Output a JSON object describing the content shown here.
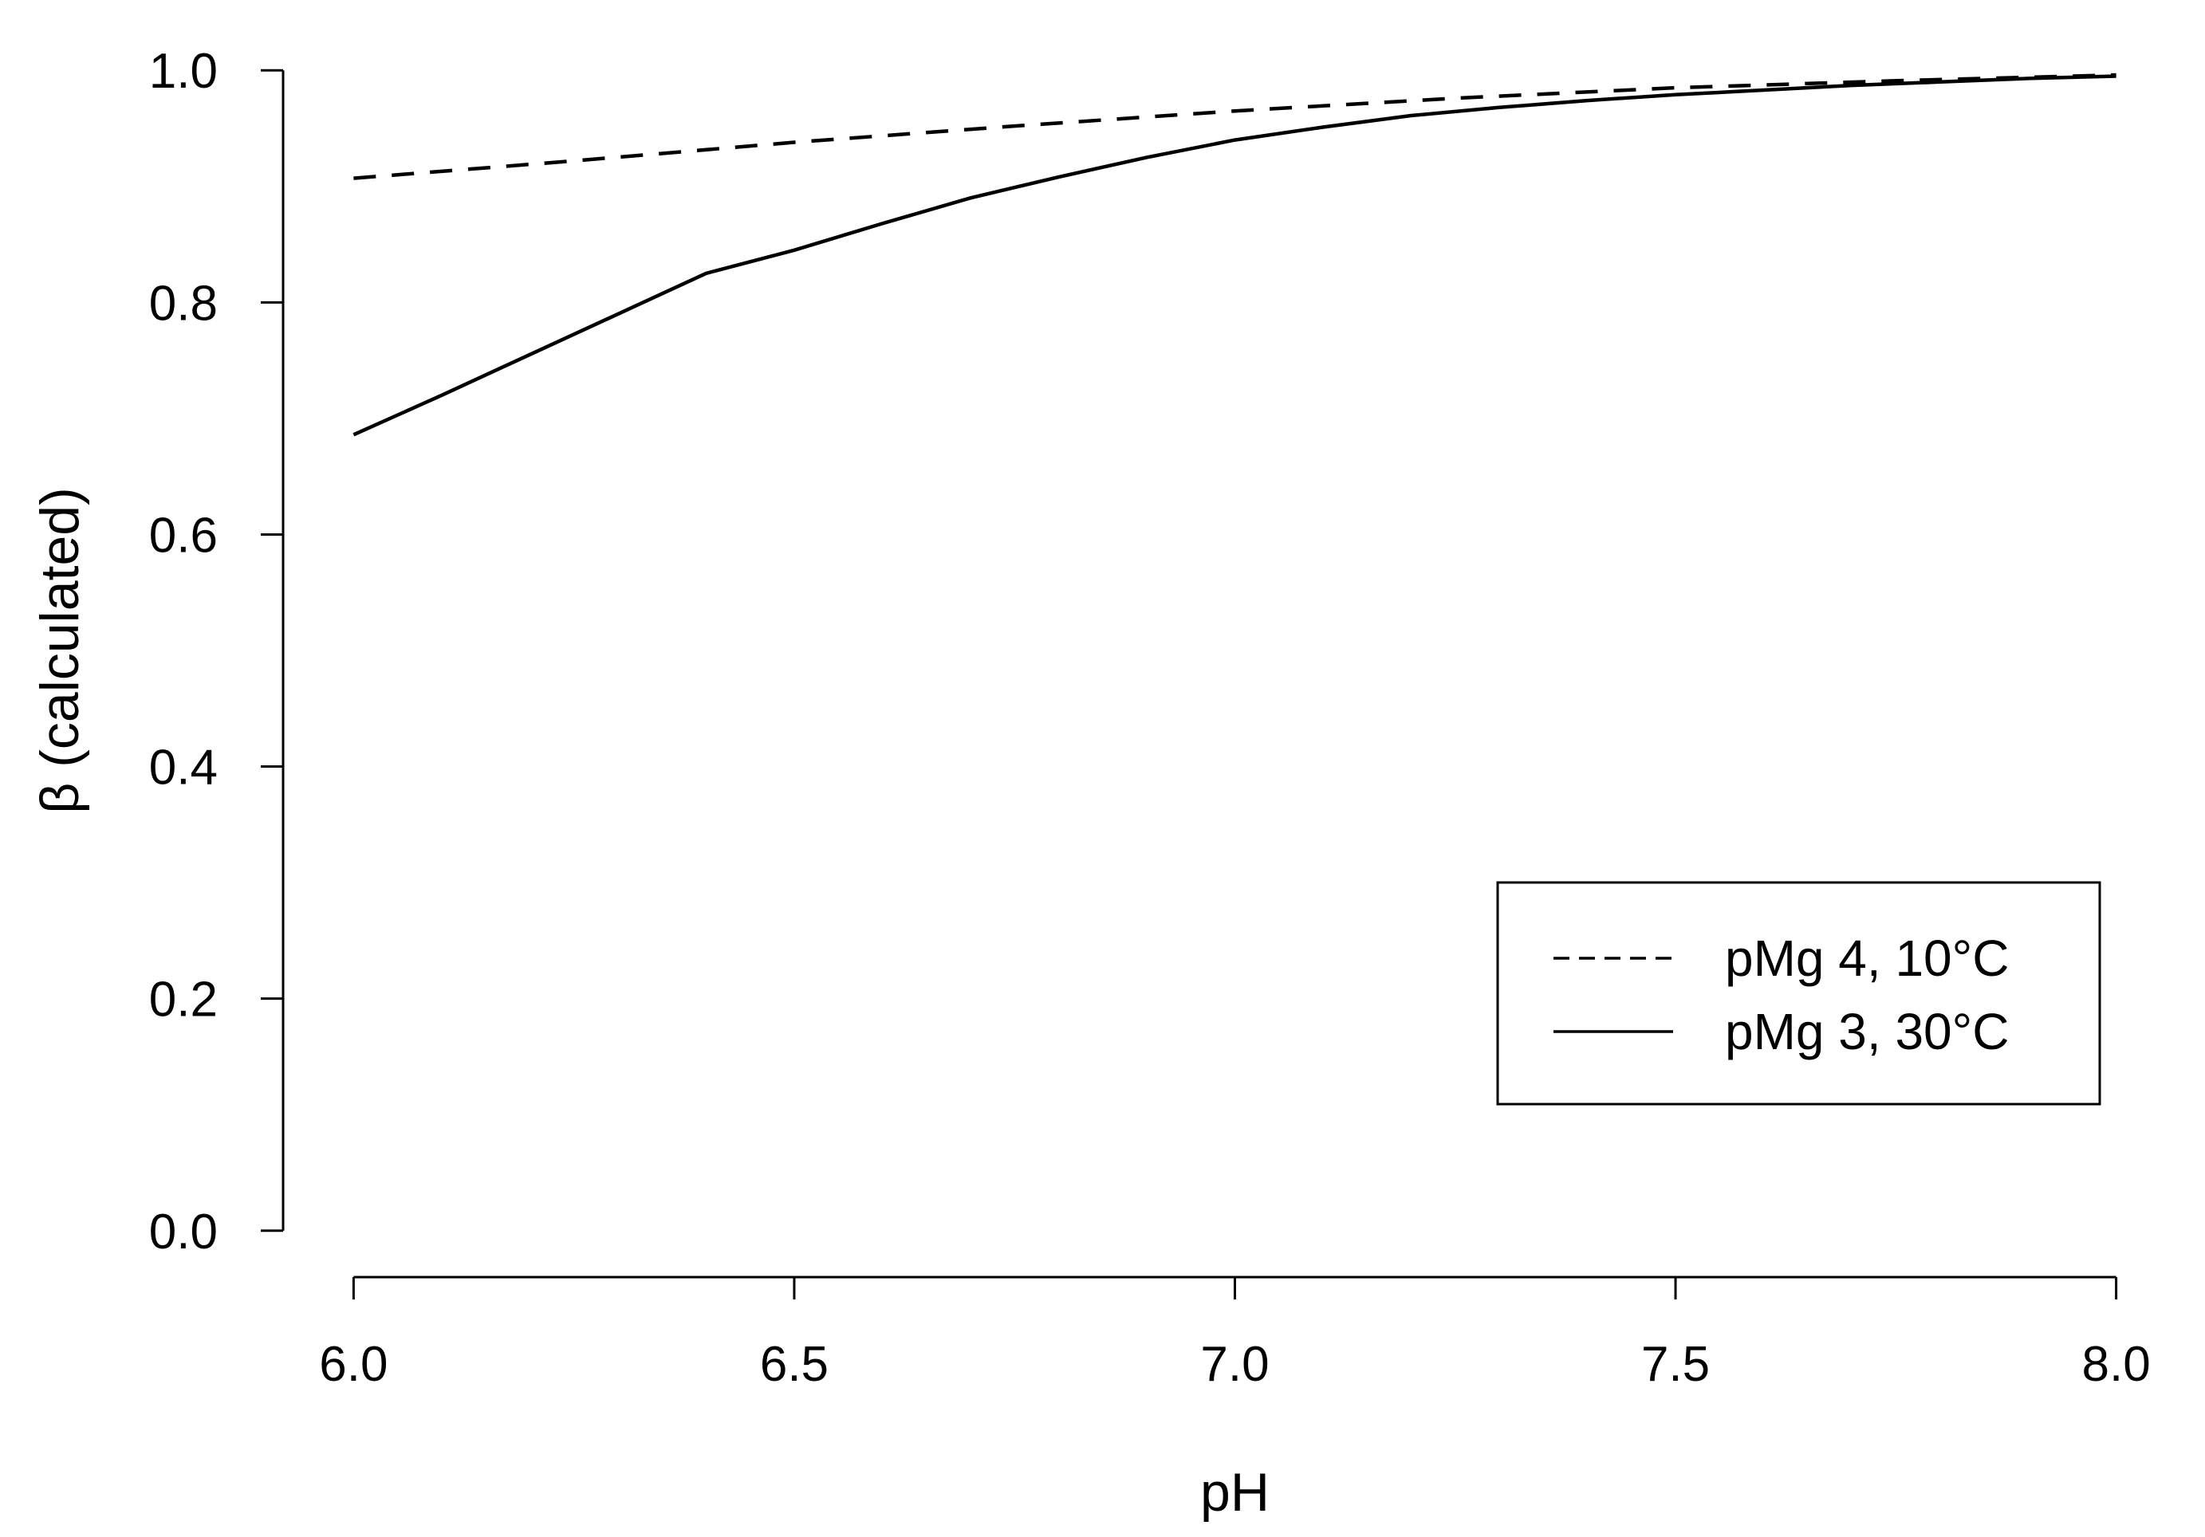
{
  "chart_data": {
    "type": "line",
    "title": "",
    "xlabel": "pH",
    "ylabel": "β (calculated)",
    "xlim": [
      5.92,
      8.08
    ],
    "ylim": [
      -0.04,
      1.04
    ],
    "xticks": [
      6.0,
      6.5,
      7.0,
      7.5,
      8.0
    ],
    "xtick_labels": [
      "6.0",
      "6.5",
      "7.0",
      "7.5",
      "8.0"
    ],
    "yticks": [
      0.0,
      0.2,
      0.4,
      0.6,
      0.8,
      1.0
    ],
    "ytick_labels": [
      "0.0",
      "0.2",
      "0.4",
      "0.6",
      "0.8",
      "1.0"
    ],
    "grid": false,
    "legend_position": "lower-right",
    "series": [
      {
        "name": "pMg 4, 10°C",
        "style": "dashed",
        "color": "#000000",
        "x": [
          6.0,
          6.25,
          6.5,
          6.75,
          7.0,
          7.25,
          7.5,
          7.75,
          8.0
        ],
        "y": [
          0.907,
          0.922,
          0.938,
          0.952,
          0.965,
          0.976,
          0.985,
          0.991,
          0.996
        ]
      },
      {
        "name": "pMg 3, 30°C",
        "style": "solid",
        "color": "#000000",
        "x": [
          6.0,
          6.1,
          6.2,
          6.3,
          6.4,
          6.5,
          6.6,
          6.7,
          6.8,
          6.9,
          7.0,
          7.1,
          7.2,
          7.3,
          7.4,
          7.5,
          7.6,
          7.7,
          7.8,
          7.9,
          8.0
        ],
        "y": [
          0.686,
          0.72,
          0.755,
          0.79,
          0.825,
          0.845,
          0.868,
          0.89,
          0.908,
          0.925,
          0.94,
          0.951,
          0.961,
          0.968,
          0.974,
          0.979,
          0.983,
          0.987,
          0.99,
          0.993,
          0.995
        ]
      }
    ]
  }
}
